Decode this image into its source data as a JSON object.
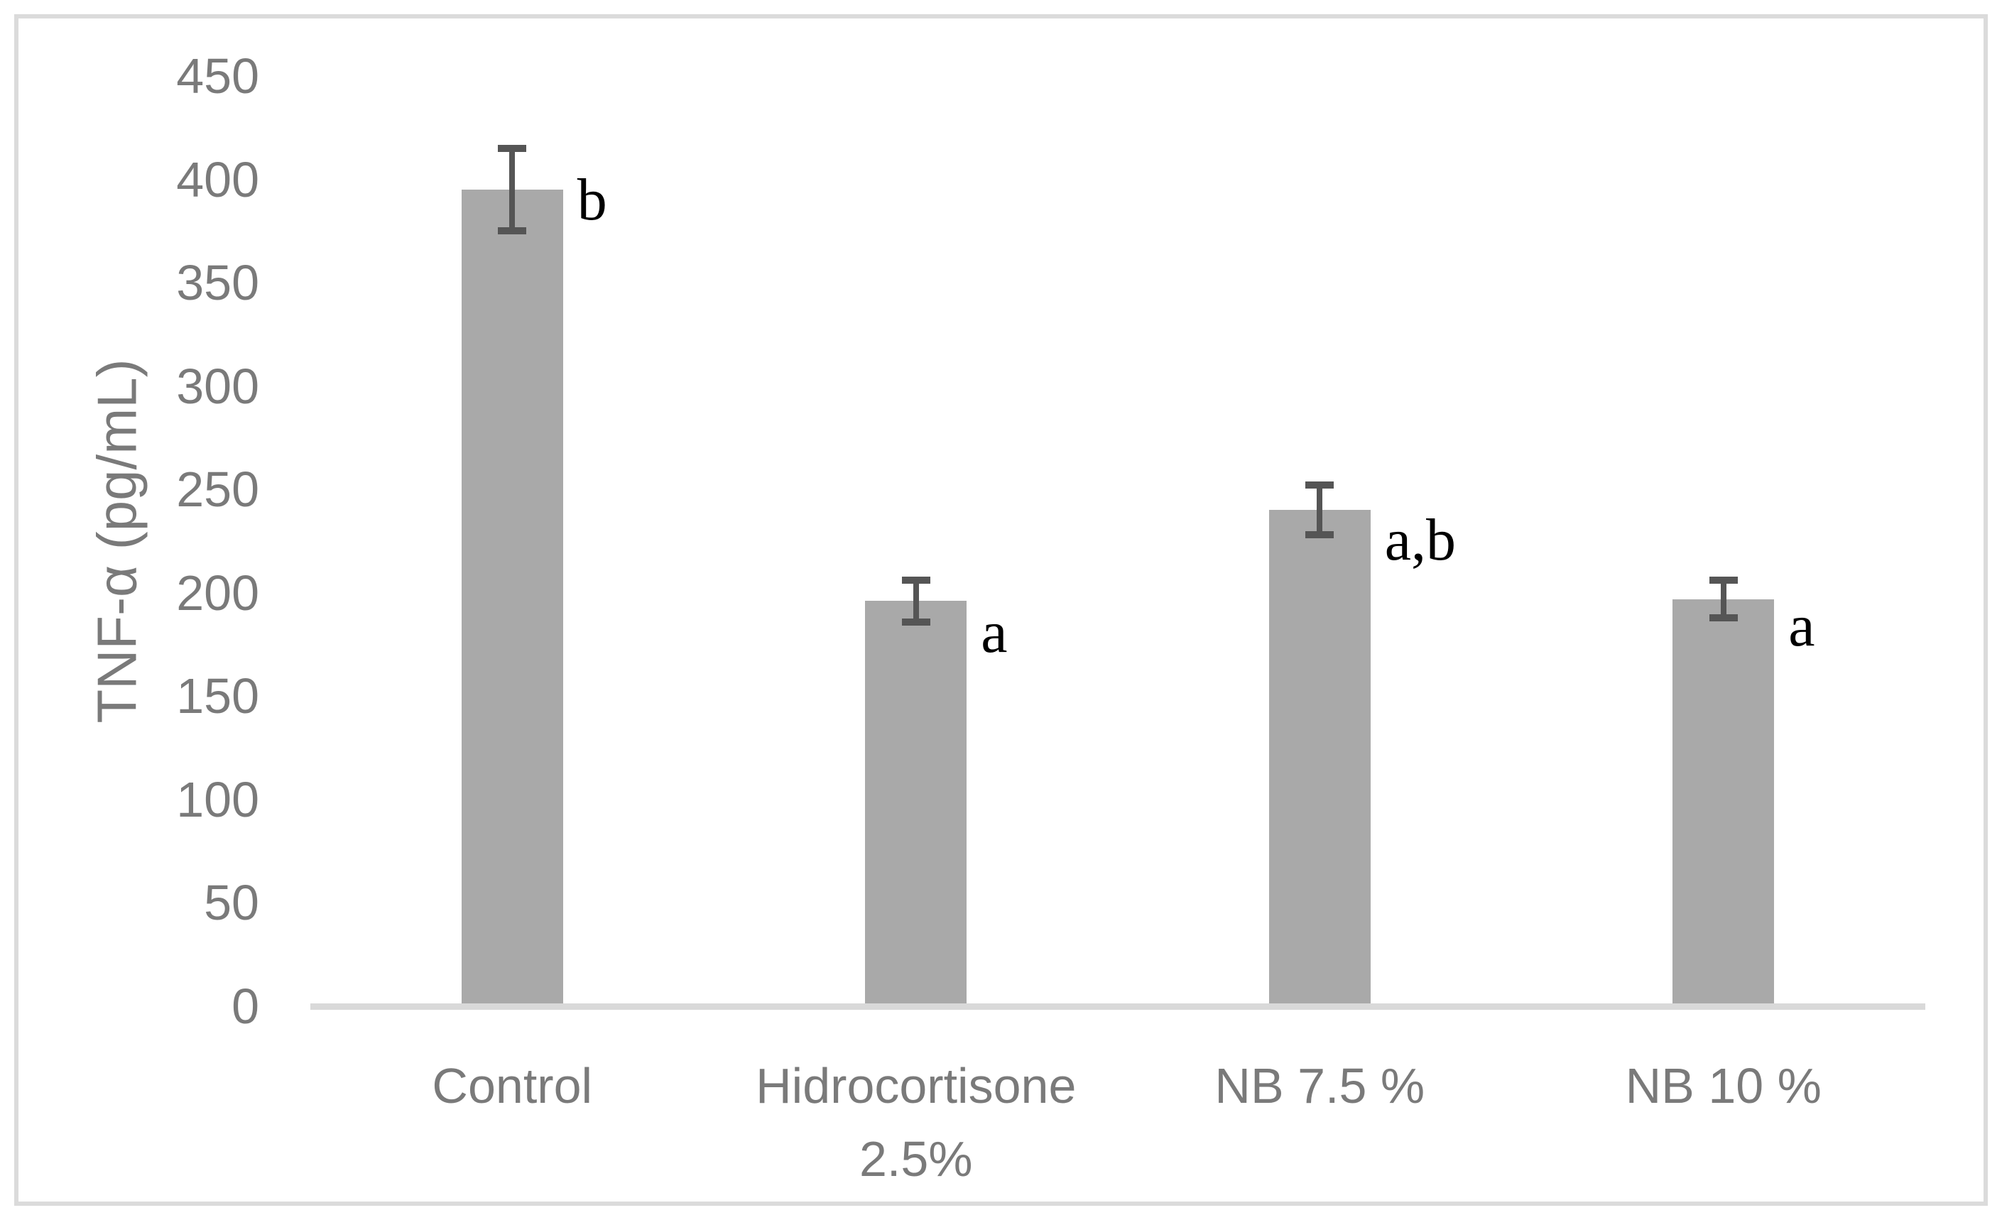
{
  "figure": {
    "background_color": "#ffffff",
    "border_color": "#dbdbdb"
  },
  "chart_data": {
    "type": "bar",
    "title": "",
    "xlabel": "",
    "ylabel": "TNF-α (pg/mL)",
    "ylim": [
      0,
      450
    ],
    "ytick_step": 50,
    "yticks": [
      450,
      400,
      350,
      300,
      250,
      200,
      150,
      100,
      50,
      0
    ],
    "grid": false,
    "legend": false,
    "categories": [
      "Control",
      "Hidrocortisone 2.5%",
      "NB 7.5 %",
      "NB 10 %"
    ],
    "category_label_lines": [
      [
        "Control"
      ],
      [
        "Hidrocortisone",
        "2.5%"
      ],
      [
        "NB 7.5 %"
      ],
      [
        "NB 10 %"
      ]
    ],
    "series": [
      {
        "name": "TNF-α (pg/mL)",
        "values": [
          395,
          196,
          240,
          197
        ],
        "errors": [
          20,
          10,
          12,
          9
        ]
      }
    ],
    "annotations": [
      "b",
      "a",
      "a,b",
      "a"
    ],
    "colors": {
      "bar_fill": "#a9a9a9",
      "error_bar": "#555555",
      "axis_line": "#d9d9d9",
      "tick_label": "#7a7a7a",
      "annotation_text": "#000000"
    }
  }
}
